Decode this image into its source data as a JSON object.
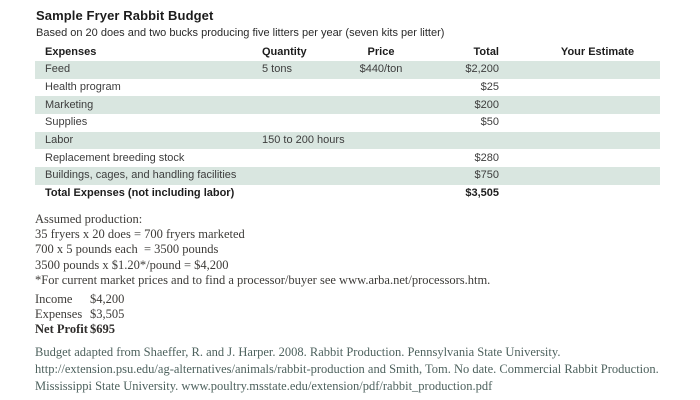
{
  "title": "Sample Fryer Rabbit Budget",
  "subtitle": "Based on 20 does and two bucks producing five litters per year (seven kits per litter)",
  "table": {
    "columns": [
      "Expenses",
      "Quantity",
      "Price",
      "Total",
      "Your Estimate"
    ],
    "rows": [
      {
        "expense": "Feed",
        "quantity": "5 tons",
        "price": "$440/ton",
        "total": "$2,200",
        "estimate": "",
        "shaded": true,
        "bold": false
      },
      {
        "expense": "Health program",
        "quantity": "",
        "price": "",
        "total": "$25",
        "estimate": "",
        "shaded": false,
        "bold": false
      },
      {
        "expense": "Marketing",
        "quantity": "",
        "price": "",
        "total": "$200",
        "estimate": "",
        "shaded": true,
        "bold": false
      },
      {
        "expense": "Supplies",
        "quantity": "",
        "price": "",
        "total": "$50",
        "estimate": "",
        "shaded": false,
        "bold": false
      },
      {
        "expense": "Labor",
        "quantity": "150 to 200 hours",
        "price": "",
        "total": "",
        "estimate": "",
        "shaded": true,
        "bold": false
      },
      {
        "expense": "Replacement breeding stock",
        "quantity": "",
        "price": "",
        "total": "$280",
        "estimate": "",
        "shaded": false,
        "bold": false
      },
      {
        "expense": "Buildings, cages, and handling facilities",
        "quantity": "",
        "price": "",
        "total": "$750",
        "estimate": "",
        "shaded": true,
        "bold": false
      },
      {
        "expense": "Total Expenses (not including labor)",
        "quantity": "",
        "price": "",
        "total": "$3,505",
        "estimate": "",
        "shaded": false,
        "bold": true
      }
    ]
  },
  "notes": {
    "lines": [
      "Assumed production:",
      "35 fryers x 20 does = 700 fryers marketed",
      "700 x 5 pounds each  = 3500 pounds",
      "3500 pounds x $1.20*/pound = $4,200",
      "*For current market prices and to find a processor/buyer see www.arba.net/processors.htm."
    ]
  },
  "summary": {
    "rows": [
      {
        "label": "Income",
        "value": "$4,200",
        "bold": false
      },
      {
        "label": "Expenses",
        "value": "$3,505",
        "bold": false
      },
      {
        "label": "Net Profit",
        "value": "$695",
        "bold": true
      }
    ]
  },
  "citation": {
    "lines": [
      "Budget adapted from Shaeffer, R. and J. Harper. 2008. Rabbit Production. Pennsylvania State University.",
      "http://extension.psu.edu/ag-alternatives/animals/rabbit-production and Smith, Tom. No date. Commercial Rabbit Production.",
      "Mississippi State University. www.poultry.msstate.edu/extension/pdf/rabbit_production.pdf"
    ]
  },
  "colors": {
    "row_shaded": "#d9e6e0",
    "citation_text": "#4e625e"
  }
}
